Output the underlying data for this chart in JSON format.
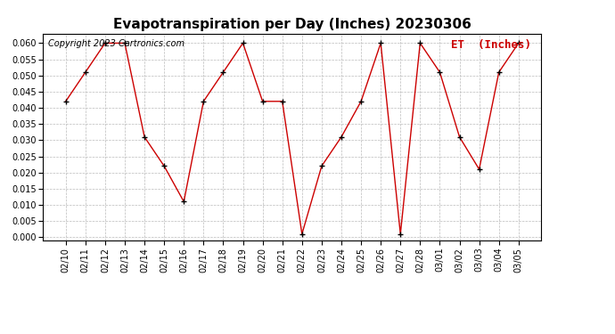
{
  "title": "Evapotranspiration per Day (Inches) 20230306",
  "legend_label": "ET  (Inches)",
  "copyright": "Copyright 2023 Cartronics.com",
  "dates": [
    "02/10",
    "02/11",
    "02/12",
    "02/13",
    "02/14",
    "02/15",
    "02/16",
    "02/17",
    "02/18",
    "02/19",
    "02/20",
    "02/21",
    "02/22",
    "02/23",
    "02/24",
    "02/25",
    "02/26",
    "02/27",
    "02/28",
    "03/01",
    "03/02",
    "03/03",
    "03/04",
    "03/05"
  ],
  "values": [
    0.042,
    0.051,
    0.06,
    0.06,
    0.031,
    0.022,
    0.011,
    0.042,
    0.051,
    0.06,
    0.042,
    0.042,
    0.001,
    0.022,
    0.031,
    0.042,
    0.06,
    0.001,
    0.06,
    0.051,
    0.031,
    0.021,
    0.051,
    0.06
  ],
  "line_color": "#cc0000",
  "marker_color": "#000000",
  "ylim": [
    -0.001,
    0.063
  ],
  "yticks": [
    0.0,
    0.005,
    0.01,
    0.015,
    0.02,
    0.025,
    0.03,
    0.035,
    0.04,
    0.045,
    0.05,
    0.055,
    0.06
  ],
  "bg_color": "#ffffff",
  "grid_color": "#bbbbbb",
  "title_fontsize": 11,
  "legend_fontsize": 9,
  "copyright_fontsize": 7,
  "tick_fontsize": 7,
  "ytick_fontsize": 7
}
